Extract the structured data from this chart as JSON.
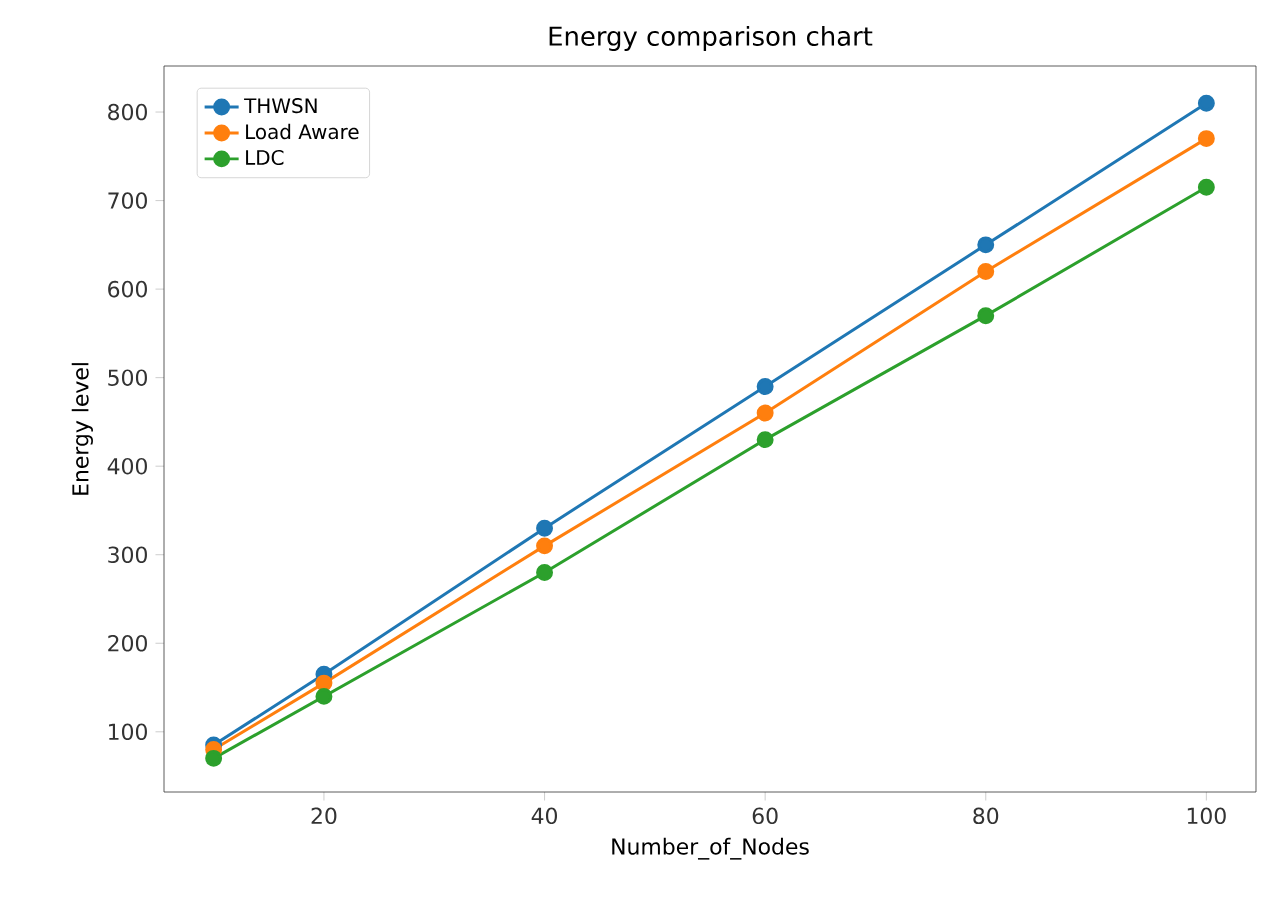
{
  "chart_data": {
    "type": "line",
    "title": "Energy comparison  chart",
    "xlabel": "Number_of_Nodes",
    "ylabel": "Energy level",
    "x": [
      10,
      20,
      40,
      60,
      80,
      100
    ],
    "series": [
      {
        "name": "THWSN",
        "color": "#1f77b4",
        "values": [
          85,
          165,
          330,
          490,
          650,
          810
        ]
      },
      {
        "name": "Load Aware",
        "color": "#ff7f0e",
        "values": [
          80,
          155,
          310,
          460,
          620,
          770
        ]
      },
      {
        "name": "LDC",
        "color": "#2ca02c",
        "values": [
          70,
          140,
          280,
          430,
          570,
          715
        ]
      }
    ],
    "xlim": [
      5.5,
      104.5
    ],
    "ylim": [
      32,
      852
    ],
    "xticks": [
      20,
      40,
      60,
      80,
      100
    ],
    "yticks": [
      100,
      200,
      300,
      400,
      500,
      600,
      700,
      800
    ],
    "legend": "top left",
    "marker": "circle",
    "line_style": "solid",
    "grid": false
  }
}
